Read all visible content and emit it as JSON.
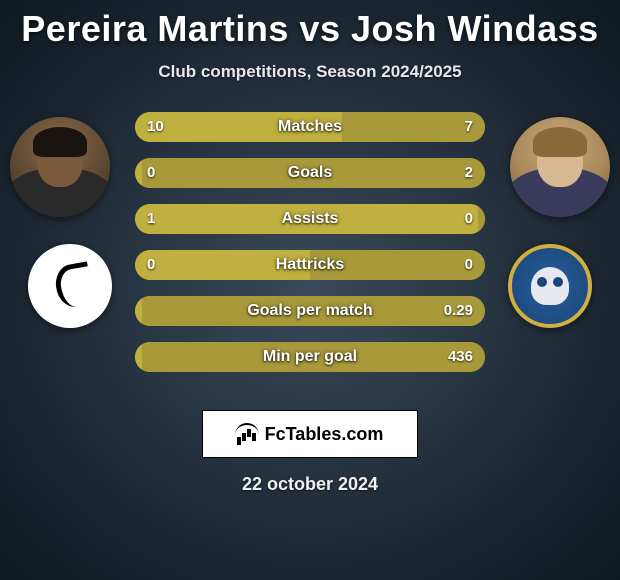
{
  "title": "Pereira Martins vs Josh Windass",
  "subtitle": "Club competitions, Season 2024/2025",
  "date": "22 october 2024",
  "brand": "FcTables.com",
  "colors": {
    "bar_base": "#a89a3a",
    "player1": "#c0b040",
    "player2": "#a89a3a",
    "text": "#ffffff"
  },
  "player1": {
    "name": "Pereira Martins",
    "club": "Swansea City AFC"
  },
  "player2": {
    "name": "Josh Windass",
    "club": "Sheffield Wednesday"
  },
  "stats": [
    {
      "label": "Matches",
      "p1": "10",
      "p2": "7",
      "p1_pct": 59,
      "p2_pct": 41
    },
    {
      "label": "Goals",
      "p1": "0",
      "p2": "2",
      "p1_pct": 2,
      "p2_pct": 98
    },
    {
      "label": "Assists",
      "p1": "1",
      "p2": "0",
      "p1_pct": 98,
      "p2_pct": 2
    },
    {
      "label": "Hattricks",
      "p1": "0",
      "p2": "0",
      "p1_pct": 50,
      "p2_pct": 50
    },
    {
      "label": "Goals per match",
      "p1": "",
      "p2": "0.29",
      "p1_pct": 2,
      "p2_pct": 98
    },
    {
      "label": "Min per goal",
      "p1": "",
      "p2": "436",
      "p1_pct": 2,
      "p2_pct": 98
    }
  ]
}
